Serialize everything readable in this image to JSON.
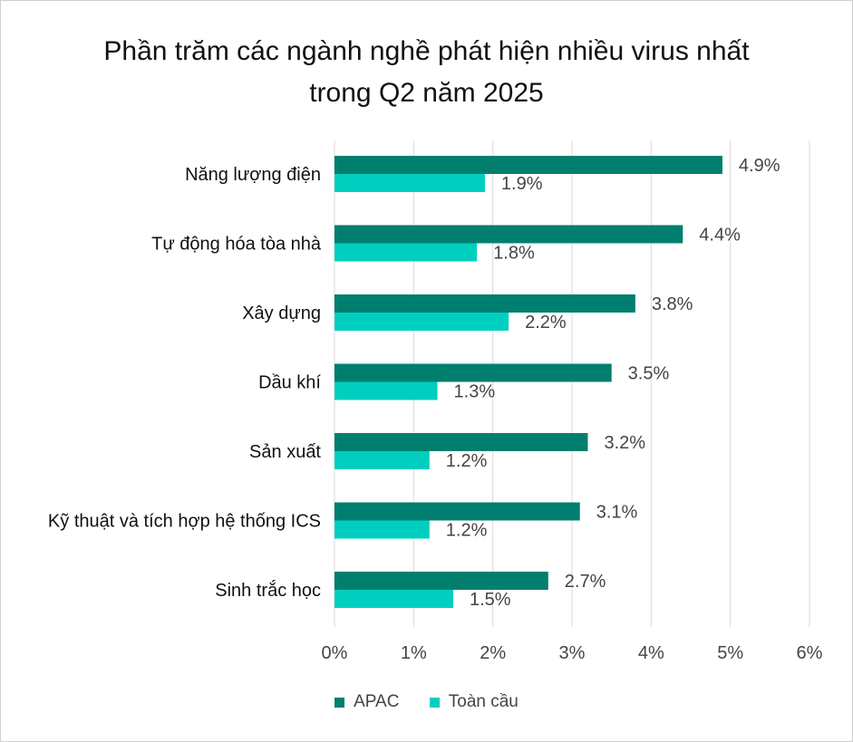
{
  "chart_data": {
    "type": "bar",
    "orientation": "horizontal",
    "title": [
      "Phần trăm các ngành nghề phát hiện nhiều virus nhất",
      "trong Q2 năm 2025"
    ],
    "categories": [
      "Năng lượng điện",
      "Tự động hóa tòa nhà",
      "Xây dựng",
      "Dầu khí",
      "Sản xuất",
      "Kỹ thuật và tích hợp hệ thống ICS",
      "Sinh trắc học"
    ],
    "series": [
      {
        "name": "APAC",
        "color": "#007f6e",
        "values": [
          4.9,
          4.4,
          3.8,
          3.5,
          3.2,
          3.1,
          2.7
        ],
        "labels": [
          "4.9%",
          "4.4%",
          "3.8%",
          "3.5%",
          "3.2%",
          "3.1%",
          "2.7%"
        ]
      },
      {
        "name": "Toàn cầu",
        "color": "#00cfc0",
        "values": [
          1.9,
          1.8,
          2.2,
          1.3,
          1.2,
          1.2,
          1.5
        ],
        "labels": [
          "1.9%",
          "1.8%",
          "2.2%",
          "1.3%",
          "1.2%",
          "1.2%",
          "1.5%"
        ]
      }
    ],
    "xlim": [
      0,
      6
    ],
    "xticks": [
      0,
      1,
      2,
      3,
      4,
      5,
      6
    ],
    "xtick_labels": [
      "0%",
      "1%",
      "2%",
      "3%",
      "4%",
      "5%",
      "6%"
    ],
    "grid": "vertical",
    "legend_position": "bottom"
  }
}
